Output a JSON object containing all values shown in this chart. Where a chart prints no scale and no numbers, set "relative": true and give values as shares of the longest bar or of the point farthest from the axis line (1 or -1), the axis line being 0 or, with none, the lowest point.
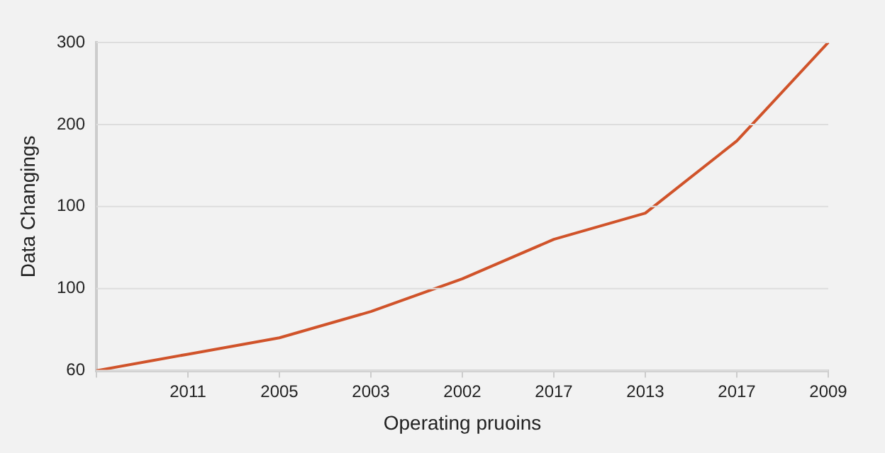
{
  "chart_data": {
    "type": "line",
    "xlabel": "Operating pruoins",
    "ylabel": "Data Changings",
    "relative": true,
    "categories": [
      null,
      "2011",
      "2005",
      "2003",
      "2002",
      "2017",
      "2013",
      "2017",
      "2009"
    ],
    "series": [
      {
        "color": "#d0532a",
        "values": [
          0,
          0.05,
          0.1,
          0.18,
          0.28,
          0.4,
          0.48,
          0.7,
          1.0
        ]
      }
    ],
    "annotations": [
      "60",
      "100",
      "100",
      "200",
      "300"
    ],
    "grid": "y",
    "legend": false,
    "marker": "none",
    "line_style": "solid"
  }
}
